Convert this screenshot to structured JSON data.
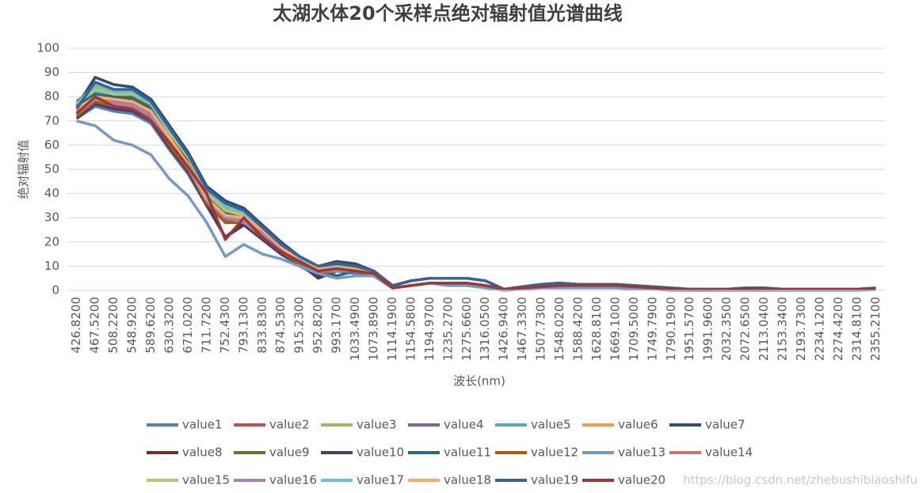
{
  "chart_data": {
    "type": "line",
    "title": "太湖水体20个采样点绝对辐射值光谱曲线",
    "x_label": "波长(nm)",
    "y_label": "绝对辐射值",
    "categories": [
      "426.8200",
      "467.5200",
      "508.2200",
      "548.9200",
      "589.6200",
      "630.3200",
      "671.0200",
      "711.7200",
      "752.4300",
      "793.1300",
      "833.8300",
      "874.5300",
      "915.2300",
      "952.8200",
      "993.1700",
      "1033.4900",
      "1073.8900",
      "1114.1900",
      "1154.5800",
      "1194.9700",
      "1235.2700",
      "1275.6600",
      "1316.0500",
      "1426.9400",
      "1467.3300",
      "1507.7300",
      "1548.0200",
      "1588.4200",
      "1628.8100",
      "1669.1000",
      "1709.5000",
      "1749.7900",
      "1790.1900",
      "1951.5700",
      "1991.9600",
      "2032.3500",
      "2072.6500",
      "2113.0400",
      "2153.3400",
      "2193.7300",
      "2234.1200",
      "2274.4200",
      "2314.8100",
      "2355.2100"
    ],
    "ylim": [
      0,
      100
    ],
    "yticks": [
      0,
      10,
      20,
      30,
      40,
      50,
      60,
      70,
      80,
      90,
      100
    ],
    "grid": true,
    "legend": "bottom",
    "series": [
      {
        "name": "value1",
        "color": "#4f81bd",
        "values": [
          71,
          76,
          74,
          73,
          69,
          58,
          48,
          35,
          22,
          27,
          21,
          15,
          10,
          6,
          8,
          7,
          6,
          1,
          2,
          3,
          3,
          3,
          2,
          0.5,
          1,
          1.5,
          2,
          2,
          2,
          2,
          1.5,
          1,
          0.5,
          0.3,
          0.3,
          0.5,
          0.5,
          0.5,
          0.5,
          0.5,
          0.5,
          0.5,
          0.5,
          0.5
        ]
      },
      {
        "name": "value2",
        "color": "#c0504d",
        "values": [
          74,
          79,
          78,
          77,
          72,
          61,
          51,
          37,
          30,
          29,
          23,
          17,
          12,
          8,
          9,
          8,
          7,
          1,
          2,
          3,
          3,
          3,
          2,
          0.5,
          1,
          1.5,
          2,
          2,
          2,
          2,
          1.5,
          1,
          0.5,
          0.3,
          0.3,
          0.5,
          0.5,
          0.5,
          0.5,
          0.5,
          0.5,
          0.5,
          0.5,
          0.5
        ]
      },
      {
        "name": "value3",
        "color": "#9bbb59",
        "values": [
          78,
          84,
          82,
          82,
          78,
          66,
          55,
          41,
          34,
          31,
          25,
          19,
          13,
          9,
          10,
          9,
          7,
          1,
          2,
          3,
          3,
          3,
          2,
          0.5,
          1,
          1.5,
          2,
          2,
          2,
          2,
          1.5,
          1,
          0.5,
          0.3,
          0.3,
          0.5,
          0.5,
          0.5,
          0.5,
          0.5,
          0.5,
          0.5,
          0.5,
          0.5
        ]
      },
      {
        "name": "value4",
        "color": "#8064a2",
        "values": [
          73,
          78,
          77,
          76,
          71,
          60,
          50,
          36,
          29,
          28,
          22,
          16,
          11,
          7,
          8,
          8,
          6,
          1,
          2,
          3,
          3,
          3,
          2,
          0.5,
          1,
          1.5,
          2,
          2,
          2,
          2,
          1.5,
          1,
          0.5,
          0.3,
          0.3,
          0.5,
          0.5,
          0.5,
          0.5,
          0.5,
          0.5,
          0.5,
          0.5,
          0.5
        ]
      },
      {
        "name": "value5",
        "color": "#4bacc6",
        "values": [
          76,
          82,
          80,
          80,
          75,
          64,
          54,
          39,
          33,
          30,
          24,
          18,
          12,
          8,
          9,
          9,
          7,
          1,
          2,
          3,
          3,
          3,
          2,
          0.5,
          1,
          1.5,
          2,
          2,
          2,
          2,
          1.5,
          1,
          0.5,
          0.3,
          0.3,
          0.5,
          0.5,
          0.5,
          0.5,
          0.5,
          0.5,
          0.5,
          0.5,
          0.5
        ]
      },
      {
        "name": "value6",
        "color": "#f79646",
        "values": [
          75,
          81,
          79,
          79,
          74,
          63,
          53,
          38,
          32,
          31,
          25,
          18,
          13,
          9,
          9,
          9,
          7,
          1,
          2,
          3,
          3,
          3,
          2,
          0.5,
          1,
          1.5,
          2,
          2,
          2,
          2,
          1.5,
          1,
          0.5,
          0.3,
          0.3,
          0.5,
          0.5,
          0.5,
          0.5,
          0.5,
          0.5,
          0.5,
          0.5,
          0.5
        ]
      },
      {
        "name": "value7",
        "color": "#2c4d75",
        "values": [
          76,
          88,
          85,
          84,
          79,
          68,
          57,
          43,
          37,
          34,
          27,
          20,
          14,
          10,
          12,
          11,
          8,
          2,
          4,
          5,
          5,
          5,
          4,
          0.5,
          1.5,
          2.5,
          3,
          2.5,
          2.5,
          2.5,
          2,
          1.5,
          1,
          0.5,
          0.5,
          0.5,
          1,
          1,
          0.5,
          0.5,
          0.5,
          0.5,
          0.5,
          1
        ]
      },
      {
        "name": "value8",
        "color": "#772c2a",
        "values": [
          72,
          77,
          76,
          75,
          70,
          59,
          49,
          36,
          22,
          28,
          21,
          16,
          11,
          6,
          8,
          8,
          6,
          1,
          2,
          3,
          3,
          3,
          2,
          0.5,
          1,
          1.5,
          2,
          2,
          2,
          2,
          1.5,
          1,
          0.5,
          0.3,
          0.3,
          0.5,
          0.5,
          0.5,
          0.5,
          0.5,
          0.5,
          0.5,
          0.5,
          0.5
        ]
      },
      {
        "name": "value9",
        "color": "#5f7530",
        "values": [
          78,
          83,
          81,
          80,
          76,
          64,
          54,
          40,
          33,
          30,
          25,
          18,
          13,
          9,
          10,
          9,
          7,
          1,
          2,
          3,
          3,
          3,
          2,
          0.5,
          1,
          1.5,
          2,
          2,
          2,
          2,
          1.5,
          1,
          0.5,
          0.3,
          0.3,
          0.5,
          0.5,
          0.5,
          0.5,
          0.5,
          0.5,
          0.5,
          0.5,
          0.5
        ]
      },
      {
        "name": "value10",
        "color": "#4d3b62",
        "values": [
          71,
          77,
          75,
          74,
          70,
          59,
          49,
          35,
          22,
          27,
          21,
          15,
          11,
          5,
          8,
          8,
          6,
          1,
          2,
          3,
          3,
          3,
          2,
          0.5,
          1,
          1.5,
          2,
          2,
          2,
          2,
          1.5,
          1,
          0.5,
          0.3,
          0.3,
          0.5,
          0.5,
          0.5,
          0.5,
          0.5,
          0.5,
          0.5,
          0.5,
          0.5
        ]
      },
      {
        "name": "value11",
        "color": "#276a7c",
        "values": [
          76,
          81,
          80,
          79,
          75,
          63,
          53,
          39,
          32,
          29,
          24,
          17,
          12,
          8,
          6,
          8,
          7,
          2,
          4,
          5,
          5,
          5,
          4,
          0.5,
          1.5,
          2.5,
          3,
          2.5,
          2.5,
          2.5,
          2,
          1.5,
          1,
          0.5,
          0.5,
          0.5,
          1,
          1,
          0.5,
          0.5,
          0.5,
          0.5,
          0.5,
          1
        ]
      },
      {
        "name": "value12",
        "color": "#b65708",
        "values": [
          72,
          78,
          76,
          75,
          71,
          60,
          50,
          36,
          28,
          28,
          22,
          16,
          11,
          7,
          8,
          8,
          6,
          1,
          2,
          3,
          3,
          3,
          2,
          0.5,
          1,
          1.5,
          2,
          2,
          2,
          2,
          1.5,
          1,
          0.5,
          0.3,
          0.3,
          0.5,
          0.5,
          0.5,
          0.5,
          0.5,
          0.5,
          0.5,
          0.5,
          0.5
        ]
      },
      {
        "name": "value13",
        "color": "#729aca",
        "values": [
          70,
          68,
          62,
          60,
          56,
          46,
          39,
          28,
          14,
          19,
          15,
          13,
          10,
          7,
          5,
          6,
          6,
          1,
          2,
          3,
          2,
          2,
          1,
          0,
          0.5,
          1,
          1,
          1,
          1,
          1,
          0.5,
          0.5,
          0,
          0,
          0,
          0,
          0,
          0,
          0,
          0,
          0,
          0,
          0,
          0.3
        ]
      },
      {
        "name": "value14",
        "color": "#cd7371",
        "values": [
          74,
          80,
          78,
          77,
          73,
          62,
          52,
          38,
          31,
          29,
          24,
          17,
          12,
          8,
          9,
          8,
          7,
          1,
          2,
          3,
          3,
          3,
          2,
          0.5,
          1,
          1.5,
          2,
          2,
          2,
          2,
          1.5,
          1,
          0.5,
          0.3,
          0.3,
          0.5,
          0.5,
          0.5,
          0.5,
          0.5,
          0.5,
          0.5,
          0.5,
          0.5
        ]
      },
      {
        "name": "value15",
        "color": "#afc97a",
        "values": [
          77,
          83,
          81,
          81,
          77,
          65,
          55,
          40,
          33,
          31,
          25,
          18,
          13,
          9,
          10,
          9,
          7,
          1,
          2,
          3,
          3,
          3,
          2,
          0.5,
          1,
          1.5,
          2,
          2,
          2,
          2,
          1.5,
          1,
          0.5,
          0.3,
          0.3,
          0.5,
          0.5,
          0.5,
          0.5,
          0.5,
          0.5,
          0.5,
          0.5,
          0.5
        ]
      },
      {
        "name": "value16",
        "color": "#9c87b8",
        "values": [
          73,
          79,
          77,
          76,
          72,
          61,
          51,
          37,
          30,
          28,
          23,
          17,
          12,
          8,
          8,
          8,
          7,
          1,
          2,
          3,
          3,
          3,
          2,
          0.5,
          1,
          1.5,
          2,
          2,
          2,
          2,
          1.5,
          1,
          0.5,
          0.3,
          0.3,
          0.5,
          0.5,
          0.5,
          0.5,
          0.5,
          0.5,
          0.5,
          0.5,
          0.5
        ]
      },
      {
        "name": "value17",
        "color": "#6fbdd1",
        "values": [
          77,
          85,
          82,
          82,
          77,
          66,
          56,
          41,
          35,
          32,
          26,
          19,
          13,
          9,
          11,
          10,
          8,
          1,
          2,
          3,
          3,
          3,
          2,
          0.5,
          1,
          1.5,
          2,
          2,
          2,
          2,
          1.5,
          1,
          0.5,
          0.3,
          0.3,
          0.5,
          0.5,
          0.5,
          0.5,
          0.5,
          0.5,
          0.5,
          0.5,
          0.5
        ]
      },
      {
        "name": "value18",
        "color": "#f9ab6b",
        "values": [
          75,
          80,
          79,
          78,
          74,
          63,
          52,
          38,
          31,
          30,
          25,
          18,
          12,
          9,
          9,
          9,
          7,
          1,
          2,
          3,
          3,
          3,
          2,
          0.5,
          1,
          1.5,
          2,
          2,
          2,
          2,
          1.5,
          1,
          0.5,
          0.3,
          0.3,
          0.5,
          0.5,
          0.5,
          0.5,
          0.5,
          0.5,
          0.5,
          0.5,
          0.5
        ]
      },
      {
        "name": "value19",
        "color": "#3a6395",
        "values": [
          75,
          86,
          83,
          83,
          78,
          67,
          56,
          42,
          36,
          33,
          26,
          19,
          14,
          10,
          11,
          10,
          8,
          2,
          4,
          5,
          5,
          5,
          4,
          0.5,
          1.5,
          2.5,
          3,
          2.5,
          2.5,
          2.5,
          2,
          1.5,
          1,
          0.5,
          0.5,
          0.5,
          1,
          1,
          0.5,
          0.5,
          0.5,
          0.5,
          0.5,
          1
        ]
      },
      {
        "name": "value20",
        "color": "#9c3836",
        "values": [
          73,
          80,
          76,
          75,
          70,
          61,
          51,
          40,
          21,
          30,
          22,
          16,
          12,
          8,
          9,
          8,
          7,
          1,
          2,
          3,
          3,
          3,
          2,
          0.5,
          1,
          1.5,
          2,
          2,
          2,
          2,
          1.5,
          1,
          0.5,
          0.3,
          0.3,
          0.5,
          0.5,
          0.5,
          0.5,
          0.5,
          0.5,
          0.5,
          0.5,
          0.5
        ]
      }
    ]
  },
  "watermark": "https://blog.csdn.net/zhebushibiaoshifu"
}
